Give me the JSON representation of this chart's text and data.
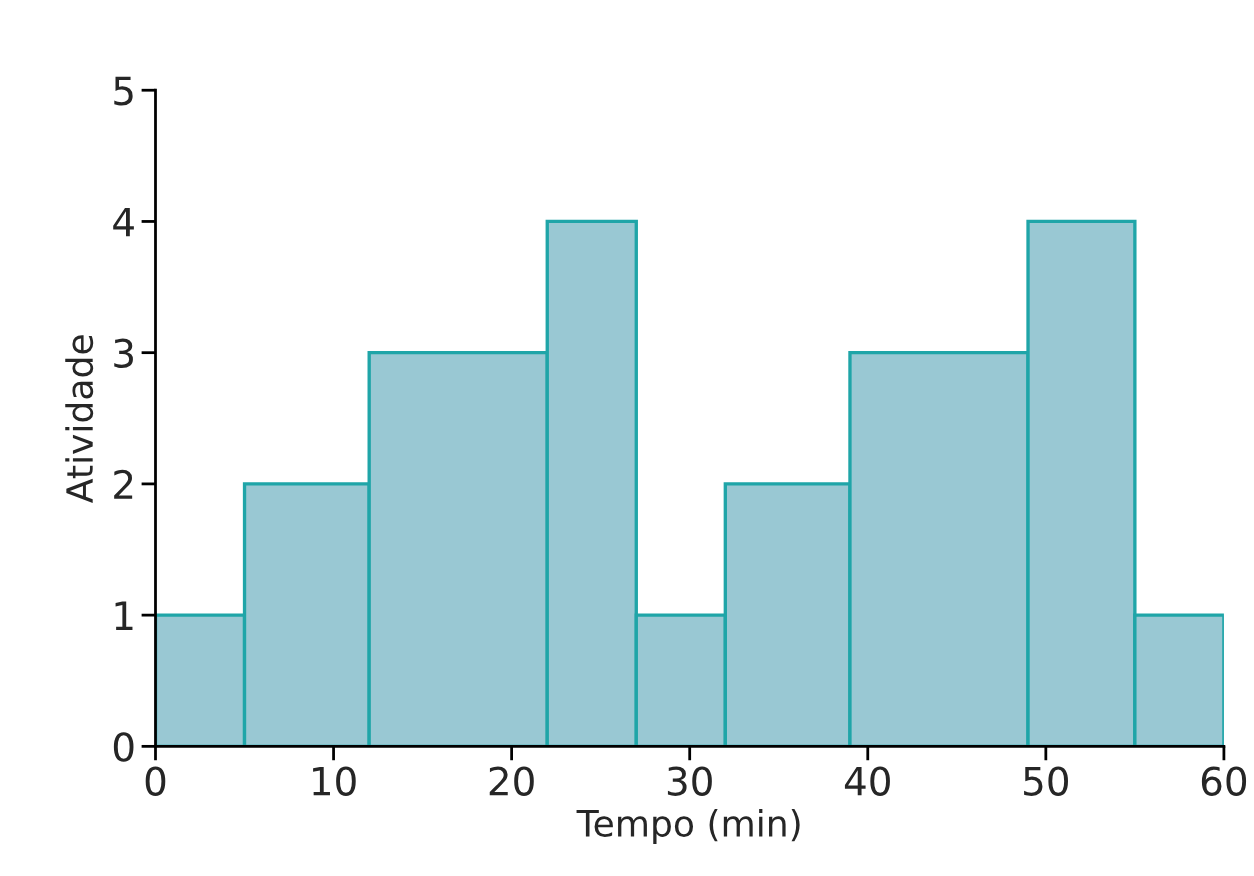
{
  "chart_data": {
    "type": "histogram",
    "xlabel": "Tempo (min)",
    "ylabel": "Atividade",
    "bins": [
      0,
      5,
      12,
      22,
      27,
      32,
      39,
      49,
      55,
      60
    ],
    "values": [
      1,
      2,
      3,
      4,
      1,
      2,
      3,
      4,
      1
    ],
    "color": "#99c8d3",
    "xlim": [
      0,
      60
    ],
    "xticks": [
      0,
      10,
      20,
      30,
      40,
      50,
      60
    ],
    "ylim": [
      0,
      5
    ],
    "yticks": [
      0,
      1,
      2,
      3,
      4,
      5
    ],
    "grid": false,
    "legend": false
  }
}
